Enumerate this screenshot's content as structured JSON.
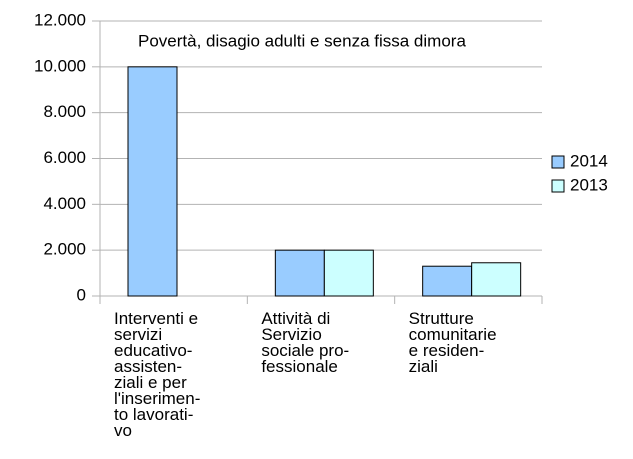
{
  "chart_data": {
    "type": "bar",
    "title": "Povertà, disagio adulti e senza fissa dimora",
    "categories": [
      "Interventi e\nservizi\neducativo-\nassisten-\nziali e per\nl'inserimen-\nto lavorati-\nvo",
      "Attività di\nServizio\nsociale pro-\nfessionale",
      "Strutture\ncomunitarie\ne residen-\nziali"
    ],
    "series": [
      {
        "name": "2014",
        "color": "#99ccff",
        "values": [
          10000,
          2000,
          1300
        ]
      },
      {
        "name": "2013",
        "color": "#ccffff",
        "values": [
          0,
          2000,
          1450
        ]
      }
    ],
    "ylim": [
      0,
      12000
    ],
    "yticks": [
      0,
      {
        "value": 2000,
        "label": "2.000"
      },
      {
        "value": 4000,
        "label": "4.000"
      },
      {
        "value": 6000,
        "label": "6.000"
      },
      {
        "value": 8000,
        "label": "8.000"
      },
      {
        "value": 10000,
        "label": "10.000"
      },
      {
        "value": 12000,
        "label": "12.000"
      }
    ],
    "grid": true,
    "legend": "right"
  }
}
